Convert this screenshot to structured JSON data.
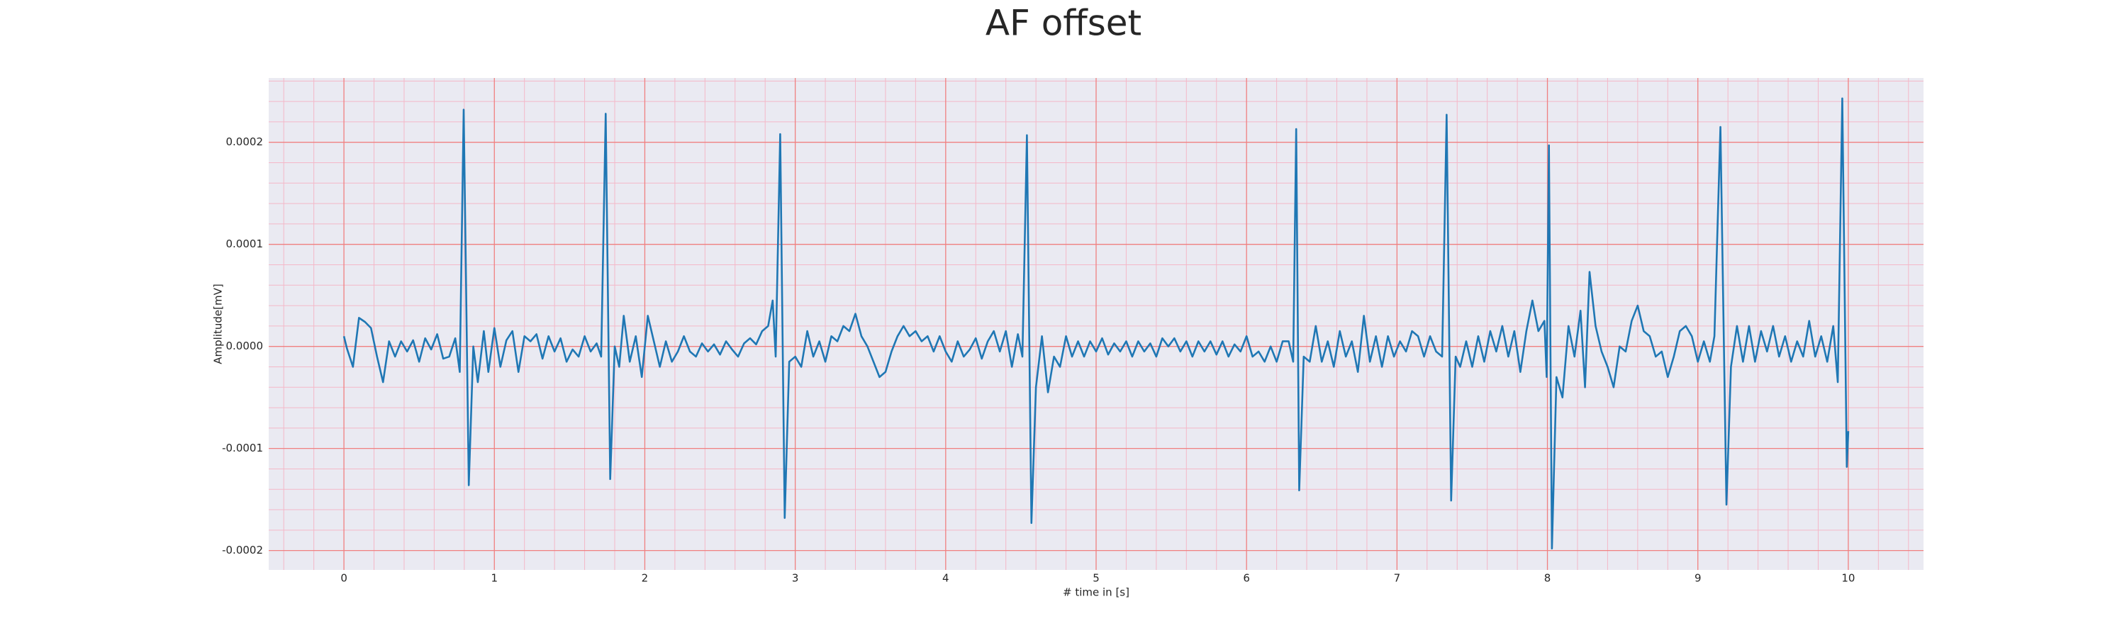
{
  "chart_data": {
    "type": "line",
    "title": "AF offset",
    "xlabel": "# time in [s]",
    "ylabel": "Amplitude[mV]",
    "color": "#1f77b4",
    "grid": true,
    "minor_grid": true,
    "xlim": [
      -0.5,
      10.5
    ],
    "xticks": [
      0,
      1,
      2,
      3,
      4,
      5,
      6,
      7,
      8,
      9,
      10
    ],
    "ylim": [
      -0.000219,
      0.000263
    ],
    "yticks": [
      {
        "value": -0.0002,
        "label": "-0.0002"
      },
      {
        "value": -0.0001,
        "label": "-0.0001"
      },
      {
        "value": 0,
        "label": "0.0000"
      },
      {
        "value": 0.0001,
        "label": "0.0001"
      },
      {
        "value": 0.0002,
        "label": "0.0002"
      }
    ],
    "x": [
      0,
      0.02,
      0.06,
      0.1,
      0.14,
      0.18,
      0.22,
      0.26,
      0.3,
      0.34,
      0.38,
      0.42,
      0.46,
      0.5,
      0.54,
      0.58,
      0.62,
      0.66,
      0.7,
      0.74,
      0.77,
      0.796,
      0.83,
      0.86,
      0.89,
      0.93,
      0.96,
      1.0,
      1.04,
      1.08,
      1.12,
      1.16,
      1.2,
      1.24,
      1.28,
      1.32,
      1.36,
      1.4,
      1.44,
      1.48,
      1.52,
      1.56,
      1.6,
      1.64,
      1.68,
      1.71,
      1.74,
      1.77,
      1.8,
      1.83,
      1.86,
      1.9,
      1.94,
      1.98,
      2.02,
      2.06,
      2.1,
      2.14,
      2.18,
      2.22,
      2.26,
      2.3,
      2.34,
      2.38,
      2.42,
      2.46,
      2.5,
      2.54,
      2.58,
      2.62,
      2.66,
      2.7,
      2.74,
      2.78,
      2.82,
      2.85,
      2.87,
      2.9,
      2.93,
      2.96,
      3.0,
      3.04,
      3.08,
      3.12,
      3.16,
      3.2,
      3.24,
      3.28,
      3.32,
      3.36,
      3.4,
      3.44,
      3.48,
      3.52,
      3.56,
      3.6,
      3.64,
      3.68,
      3.72,
      3.76,
      3.8,
      3.84,
      3.88,
      3.92,
      3.96,
      4.0,
      4.04,
      4.08,
      4.12,
      4.16,
      4.2,
      4.24,
      4.28,
      4.32,
      4.36,
      4.4,
      4.44,
      4.48,
      4.51,
      4.54,
      4.57,
      4.6,
      4.64,
      4.68,
      4.72,
      4.76,
      4.8,
      4.84,
      4.88,
      4.92,
      4.96,
      5.0,
      5.04,
      5.08,
      5.12,
      5.16,
      5.2,
      5.24,
      5.28,
      5.32,
      5.36,
      5.4,
      5.44,
      5.48,
      5.52,
      5.56,
      5.6,
      5.64,
      5.68,
      5.72,
      5.76,
      5.8,
      5.84,
      5.88,
      5.92,
      5.96,
      6.0,
      6.04,
      6.08,
      6.12,
      6.16,
      6.2,
      6.24,
      6.28,
      6.31,
      6.33,
      6.35,
      6.38,
      6.42,
      6.46,
      6.5,
      6.54,
      6.58,
      6.62,
      6.66,
      6.7,
      6.74,
      6.78,
      6.82,
      6.86,
      6.9,
      6.94,
      6.98,
      7.02,
      7.06,
      7.1,
      7.14,
      7.18,
      7.22,
      7.26,
      7.3,
      7.33,
      7.36,
      7.39,
      7.42,
      7.46,
      7.5,
      7.54,
      7.58,
      7.62,
      7.66,
      7.7,
      7.74,
      7.78,
      7.82,
      7.86,
      7.9,
      7.94,
      7.98,
      7.995,
      8.01,
      8.03,
      8.06,
      8.1,
      8.14,
      8.18,
      8.22,
      8.25,
      8.28,
      8.32,
      8.36,
      8.4,
      8.44,
      8.48,
      8.52,
      8.56,
      8.6,
      8.64,
      8.68,
      8.72,
      8.76,
      8.8,
      8.84,
      8.88,
      8.92,
      8.96,
      9.0,
      9.04,
      9.08,
      9.11,
      9.15,
      9.19,
      9.22,
      9.26,
      9.3,
      9.34,
      9.38,
      9.42,
      9.46,
      9.5,
      9.54,
      9.58,
      9.62,
      9.66,
      9.7,
      9.74,
      9.78,
      9.82,
      9.86,
      9.9,
      9.93,
      9.96,
      9.99,
      10.0
    ],
    "values": [
      1e-05,
      -2e-06,
      -2e-05,
      2.8e-05,
      2.4e-05,
      1.8e-05,
      -1e-05,
      -3.5e-05,
      5e-06,
      -1e-05,
      5e-06,
      -5e-06,
      6e-06,
      -1.5e-05,
      8e-06,
      -3e-06,
      1.2e-05,
      -1.2e-05,
      -1e-05,
      8e-06,
      -2.5e-05,
      0.000232,
      -0.000136,
      0,
      -3.5e-05,
      1.5e-05,
      -2.5e-05,
      1.8e-05,
      -2e-05,
      6e-06,
      1.5e-05,
      -2.5e-05,
      1e-05,
      5e-06,
      1.2e-05,
      -1.2e-05,
      1e-05,
      -5e-06,
      8e-06,
      -1.5e-05,
      -3e-06,
      -1e-05,
      1e-05,
      -5e-06,
      3e-06,
      -1e-05,
      0.000228,
      -0.00013,
      0,
      -2e-05,
      3e-05,
      -1.5e-05,
      1e-05,
      -3e-05,
      3e-05,
      5e-06,
      -2e-05,
      5e-06,
      -1.5e-05,
      -5e-06,
      1e-05,
      -5e-06,
      -1e-05,
      3e-06,
      -5e-06,
      2e-06,
      -8e-06,
      5e-06,
      -3e-06,
      -1e-05,
      3e-06,
      8e-06,
      2e-06,
      1.5e-05,
      2e-05,
      4.5e-05,
      -1e-05,
      0.000208,
      -0.000168,
      -1.5e-05,
      -1e-05,
      -2e-05,
      1.5e-05,
      -1e-05,
      5e-06,
      -1.5e-05,
      1e-05,
      5e-06,
      2e-05,
      1.5e-05,
      3.2e-05,
      1e-05,
      0,
      -1.5e-05,
      -3e-05,
      -2.5e-05,
      -5e-06,
      1e-05,
      2e-05,
      1e-05,
      1.5e-05,
      5e-06,
      1e-05,
      -5e-06,
      1e-05,
      -5e-06,
      -1.5e-05,
      5e-06,
      -1e-05,
      -3e-06,
      8e-06,
      -1.2e-05,
      5e-06,
      1.5e-05,
      -5e-06,
      1.5e-05,
      -2e-05,
      1.2e-05,
      -1e-05,
      0.000207,
      -0.000173,
      -4e-05,
      1e-05,
      -4.5e-05,
      -1e-05,
      -2e-05,
      1e-05,
      -1e-05,
      5e-06,
      -1e-05,
      5e-06,
      -5e-06,
      8e-06,
      -8e-06,
      3e-06,
      -5e-06,
      5e-06,
      -1e-05,
      5e-06,
      -5e-06,
      3e-06,
      -1e-05,
      8e-06,
      0,
      8e-06,
      -5e-06,
      5e-06,
      -1e-05,
      5e-06,
      -5e-06,
      5e-06,
      -8e-06,
      5e-06,
      -1e-05,
      2e-06,
      -5e-06,
      1e-05,
      -1e-05,
      -5e-06,
      -1.5e-05,
      0,
      -1.5e-05,
      5e-06,
      5e-06,
      -1.5e-05,
      0.000213,
      -0.000141,
      -1e-05,
      -1.5e-05,
      2e-05,
      -1.5e-05,
      5e-06,
      -2e-05,
      1.5e-05,
      -1e-05,
      5e-06,
      -2.5e-05,
      3e-05,
      -1.5e-05,
      1e-05,
      -2e-05,
      1e-05,
      -1e-05,
      5e-06,
      -5e-06,
      1.5e-05,
      1e-05,
      -1e-05,
      1e-05,
      -5e-06,
      -1e-05,
      0.000227,
      -0.000151,
      -1e-05,
      -2e-05,
      5e-06,
      -2e-05,
      1e-05,
      -1.5e-05,
      1.5e-05,
      -5e-06,
      2e-05,
      -1e-05,
      1.5e-05,
      -2.5e-05,
      1.5e-05,
      4.5e-05,
      1.5e-05,
      2.5e-05,
      -3e-05,
      0.000197,
      -0.000198,
      -3e-05,
      -5e-05,
      2e-05,
      -1e-05,
      3.5e-05,
      -4e-05,
      7.3e-05,
      2e-05,
      -5e-06,
      -2e-05,
      -4e-05,
      0,
      -5e-06,
      2.5e-05,
      4e-05,
      1.5e-05,
      1e-05,
      -1e-05,
      -5e-06,
      -3e-05,
      -1e-05,
      1.5e-05,
      2e-05,
      1e-05,
      -1.5e-05,
      5e-06,
      -1.5e-05,
      1e-05,
      0.000215,
      -0.000155,
      -2e-05,
      2e-05,
      -1.5e-05,
      2e-05,
      -1.5e-05,
      1.5e-05,
      -5e-06,
      2e-05,
      -1e-05,
      1e-05,
      -1.5e-05,
      5e-06,
      -1e-05,
      2.5e-05,
      -1e-05,
      1e-05,
      -1.5e-05,
      2e-05,
      -3.5e-05,
      0.000243,
      -0.000118,
      -8.3e-05
    ]
  }
}
